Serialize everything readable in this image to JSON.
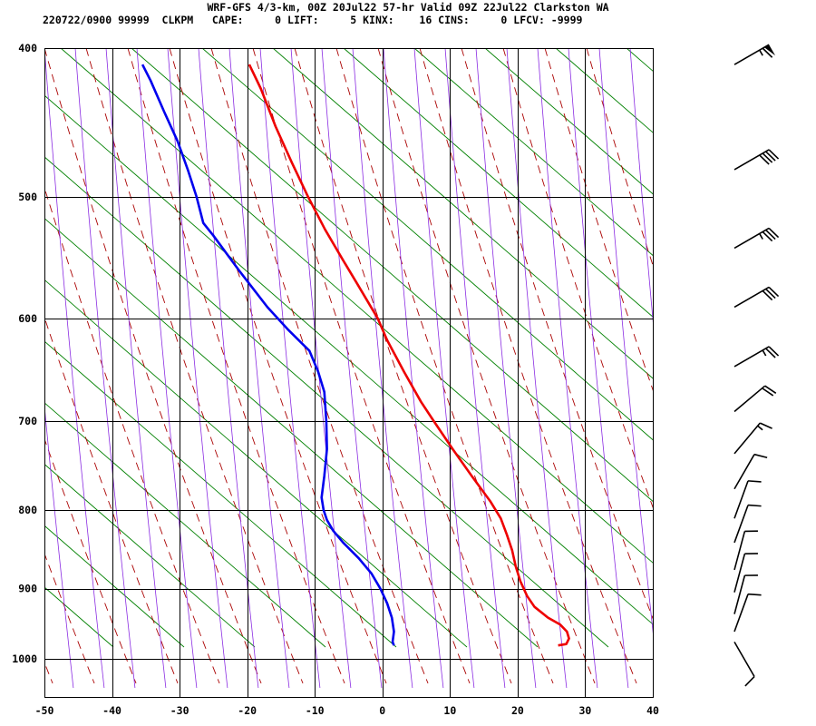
{
  "header": {
    "line1": "WRF-GFS 4/3-km, 00Z 20Jul22 57-hr Valid 09Z 22Jul22 Clarkston WA",
    "line2": "220722/0900 99999  CLKPM   CAPE:     0 LIFT:     5 KINX:    16 CINS:     0 LFCV: -9999"
  },
  "chart_data": {
    "type": "skew-t",
    "title": "WRF-GFS 4/3-km, 00Z 20Jul22 57-hr Valid 09Z 22Jul22 Clarkston WA",
    "x_ticks": [
      -50,
      -40,
      -30,
      -20,
      -10,
      0,
      10,
      20,
      30,
      40
    ],
    "x_tick_labels": [
      "-50",
      "-40",
      "-30",
      "-20",
      "-10",
      "0",
      "10",
      "20",
      "30",
      "40"
    ],
    "y_ticks": [
      400,
      500,
      600,
      700,
      800,
      900,
      1000
    ],
    "y_tick_labels": [
      "400",
      "500",
      "600",
      "700",
      "800",
      "900",
      "1000"
    ],
    "xlim": [
      -50,
      40
    ],
    "ylim": [
      1040,
      400
    ],
    "y_scale": "log",
    "grid": true,
    "series": [
      {
        "kind": "temperature",
        "color": "#ee0000",
        "points": [
          {
            "p": 980,
            "t": 26.0
          },
          {
            "p": 978,
            "t": 27.2
          },
          {
            "p": 970,
            "t": 27.6
          },
          {
            "p": 960,
            "t": 27.3
          },
          {
            "p": 950,
            "t": 26.3
          },
          {
            "p": 940,
            "t": 24.5
          },
          {
            "p": 925,
            "t": 22.5
          },
          {
            "p": 910,
            "t": 21.4
          },
          {
            "p": 890,
            "t": 20.4
          },
          {
            "p": 870,
            "t": 19.7
          },
          {
            "p": 850,
            "t": 19.2
          },
          {
            "p": 830,
            "t": 18.4
          },
          {
            "p": 810,
            "t": 17.5
          },
          {
            "p": 790,
            "t": 16.0
          },
          {
            "p": 760,
            "t": 13.2
          },
          {
            "p": 730,
            "t": 10.4
          },
          {
            "p": 700,
            "t": 7.6
          },
          {
            "p": 680,
            "t": 5.7
          },
          {
            "p": 650,
            "t": 3.2
          },
          {
            "p": 620,
            "t": 0.7
          },
          {
            "p": 600,
            "t": -0.7
          },
          {
            "p": 570,
            "t": -3.7
          },
          {
            "p": 550,
            "t": -5.8
          },
          {
            "p": 525,
            "t": -8.5
          },
          {
            "p": 500,
            "t": -11.0
          },
          {
            "p": 475,
            "t": -13.4
          },
          {
            "p": 450,
            "t": -15.8
          },
          {
            "p": 425,
            "t": -18.0
          },
          {
            "p": 410,
            "t": -19.7
          }
        ]
      },
      {
        "kind": "dewpoint",
        "color": "#0000ee",
        "points": [
          {
            "p": 980,
            "t": 1.7
          },
          {
            "p": 975,
            "t": 1.5
          },
          {
            "p": 960,
            "t": 1.7
          },
          {
            "p": 940,
            "t": 1.4
          },
          {
            "p": 920,
            "t": 0.7
          },
          {
            "p": 900,
            "t": -0.3
          },
          {
            "p": 880,
            "t": -1.6
          },
          {
            "p": 860,
            "t": -3.5
          },
          {
            "p": 840,
            "t": -5.8
          },
          {
            "p": 825,
            "t": -7.3
          },
          {
            "p": 812,
            "t": -8.2
          },
          {
            "p": 800,
            "t": -8.7
          },
          {
            "p": 785,
            "t": -9.0
          },
          {
            "p": 760,
            "t": -8.6
          },
          {
            "p": 730,
            "t": -8.2
          },
          {
            "p": 700,
            "t": -8.3
          },
          {
            "p": 670,
            "t": -8.6
          },
          {
            "p": 650,
            "t": -9.5
          },
          {
            "p": 630,
            "t": -10.8
          },
          {
            "p": 610,
            "t": -14.0
          },
          {
            "p": 590,
            "t": -17.0
          },
          {
            "p": 560,
            "t": -21.0
          },
          {
            "p": 530,
            "t": -25.0
          },
          {
            "p": 520,
            "t": -26.5
          },
          {
            "p": 500,
            "t": -27.5
          },
          {
            "p": 480,
            "t": -28.8
          },
          {
            "p": 460,
            "t": -30.3
          },
          {
            "p": 440,
            "t": -32.3
          },
          {
            "p": 420,
            "t": -34.3
          },
          {
            "p": 410,
            "t": -35.5
          }
        ]
      }
    ],
    "reference_lines": {
      "isotherm_color": "#000000",
      "isobar_color": "#000000",
      "mixing_ratio_color": "#008000",
      "dry_adiabat_color": "#aa0000",
      "moist_adiabat_color": "#8a2be2"
    },
    "wind_barbs": [
      {
        "p": 410,
        "speed_kt": 65,
        "dir_deg": 240
      },
      {
        "p": 480,
        "speed_kt": 40,
        "dir_deg": 240
      },
      {
        "p": 540,
        "speed_kt": 35,
        "dir_deg": 240
      },
      {
        "p": 590,
        "speed_kt": 30,
        "dir_deg": 240
      },
      {
        "p": 645,
        "speed_kt": 25,
        "dir_deg": 240
      },
      {
        "p": 690,
        "speed_kt": 20,
        "dir_deg": 230
      },
      {
        "p": 735,
        "speed_kt": 15,
        "dir_deg": 220
      },
      {
        "p": 775,
        "speed_kt": 10,
        "dir_deg": 210
      },
      {
        "p": 810,
        "speed_kt": 10,
        "dir_deg": 200
      },
      {
        "p": 840,
        "speed_kt": 10,
        "dir_deg": 200
      },
      {
        "p": 875,
        "speed_kt": 10,
        "dir_deg": 195
      },
      {
        "p": 905,
        "speed_kt": 10,
        "dir_deg": 195
      },
      {
        "p": 935,
        "speed_kt": 10,
        "dir_deg": 195
      },
      {
        "p": 960,
        "speed_kt": 10,
        "dir_deg": 200
      },
      {
        "p": 975,
        "speed_kt": 10,
        "dir_deg": 330
      }
    ]
  }
}
